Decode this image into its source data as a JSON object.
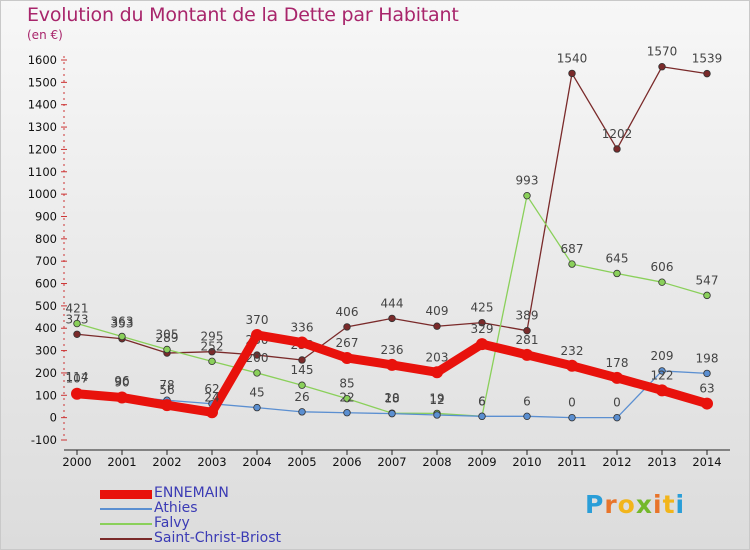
{
  "title": "Evolution du Montant de la Dette par Habitant",
  "subtitle": "(en €)",
  "logo": {
    "text": "Proxiti",
    "colors": [
      "#2a9ed8",
      "#e8742a",
      "#f2b51b",
      "#74b82b",
      "#e8742a",
      "#f2b51b",
      "#2a9ed8"
    ]
  },
  "chart_data": {
    "type": "line",
    "x": [
      2000,
      2001,
      2002,
      2003,
      2004,
      2005,
      2006,
      2007,
      2008,
      2009,
      2010,
      2011,
      2012,
      2013,
      2014
    ],
    "ylim": [
      -100,
      1600
    ],
    "yticks": [
      -100,
      0,
      100,
      200,
      300,
      400,
      500,
      600,
      700,
      800,
      900,
      1000,
      1100,
      1200,
      1300,
      1400,
      1500,
      1600
    ],
    "grid": false,
    "legend_position": "bottom-left",
    "series": [
      {
        "name": "ENNEMAIN",
        "color": "#e8120c",
        "values": [
          107,
          90,
          56,
          24,
          370,
          336,
          267,
          236,
          203,
          329,
          281,
          232,
          178,
          122,
          63
        ]
      },
      {
        "name": "Athies",
        "color": "#5b8fd1",
        "values": [
          114,
          96,
          78,
          62,
          45,
          26,
          22,
          18,
          12,
          6,
          6,
          0,
          0,
          209,
          198
        ]
      },
      {
        "name": "Falvy",
        "color": "#8ad05a",
        "values": [
          421,
          363,
          305,
          252,
          200,
          145,
          85,
          20,
          19,
          6,
          993,
          687,
          645,
          606,
          547
        ]
      },
      {
        "name": "Saint-Christ-Briost",
        "color": "#7a2a2a",
        "values": [
          373,
          353,
          289,
          295,
          280,
          258,
          406,
          444,
          409,
          425,
          389,
          1540,
          1202,
          1570,
          1539
        ]
      }
    ]
  }
}
